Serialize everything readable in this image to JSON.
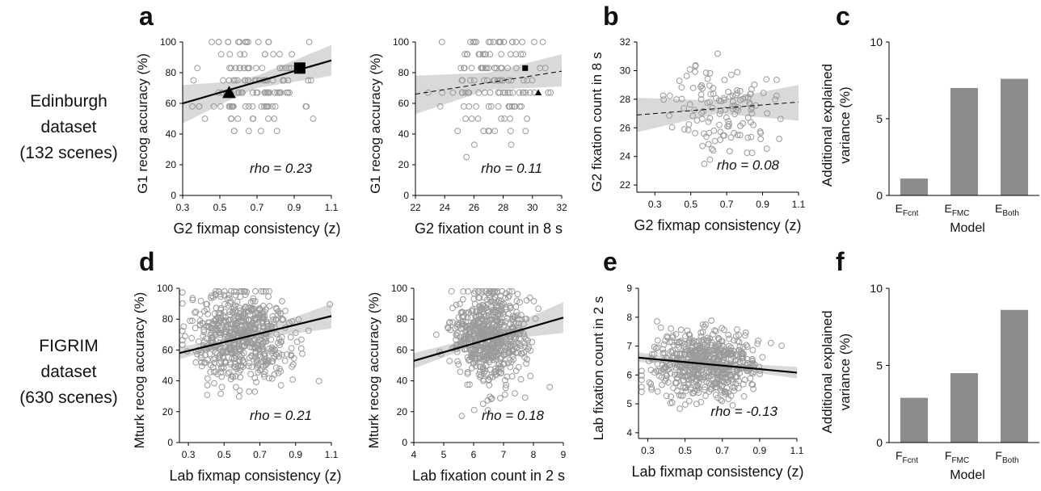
{
  "rows": [
    {
      "lines": [
        "Edinburgh",
        "dataset",
        "(132 scenes)"
      ]
    },
    {
      "lines": [
        "FIGRIM",
        "dataset",
        "(630 scenes)"
      ]
    }
  ],
  "panel_letters": [
    "a",
    "b",
    "c",
    "d",
    "e",
    "f"
  ],
  "chart_data": [
    {
      "type": "scatter",
      "panel": "a",
      "xlabel": "G2 fixmap consistency (z)",
      "ylabel": "G1 recog accuracy (%)",
      "xlim": [
        0.3,
        1.1
      ],
      "ylim": [
        0,
        100
      ],
      "xticks": [
        "0.3",
        "0.5",
        "0.7",
        "0.9",
        "1.1"
      ],
      "yticks": [
        "0",
        "20",
        "40",
        "60",
        "80",
        "100"
      ],
      "annotation": "rho = 0.23",
      "fit": {
        "x": [
          0.3,
          1.1
        ],
        "y": [
          60,
          88
        ],
        "style": "solid"
      },
      "band": {
        "x": [
          0.3,
          0.55,
          0.7,
          1.1
        ],
        "lower": [
          47,
          62,
          70,
          78
        ],
        "upper": [
          72,
          74,
          78,
          98
        ]
      },
      "points": {
        "n": 132,
        "seed": 11,
        "xmean": 0.68,
        "xsd": 0.13,
        "ylevels": [
          25,
          33,
          42,
          50,
          58,
          67,
          75,
          83,
          92,
          100
        ],
        "ysd": 18,
        "ymean": 73
      },
      "markers": [
        {
          "shape": "triangle",
          "x": 0.55,
          "y": 67,
          "size": "large"
        },
        {
          "shape": "square",
          "x": 0.93,
          "y": 83,
          "size": "large"
        }
      ]
    },
    {
      "type": "scatter",
      "panel": "a2",
      "xlabel": "G2 fixation count in 8 s",
      "ylabel": "G1 recog accuracy (%)",
      "xlim": [
        22,
        32
      ],
      "ylim": [
        0,
        100
      ],
      "xticks": [
        "22",
        "24",
        "26",
        "28",
        "30",
        "32"
      ],
      "yticks": [
        "0",
        "20",
        "40",
        "60",
        "80",
        "100"
      ],
      "annotation": "rho = 0.11",
      "fit": {
        "x": [
          22,
          32
        ],
        "y": [
          66,
          81
        ],
        "style": "dashed"
      },
      "band": {
        "x": [
          22,
          27,
          32
        ],
        "lower": [
          53,
          69,
          71
        ],
        "upper": [
          78,
          80,
          92
        ]
      },
      "points": {
        "n": 132,
        "seed": 23,
        "xmean": 27.2,
        "xsd": 1.6,
        "ylevels": [
          25,
          33,
          42,
          50,
          58,
          67,
          75,
          83,
          92,
          100
        ],
        "ysd": 18,
        "ymean": 73
      },
      "markers": [
        {
          "shape": "square",
          "x": 29.5,
          "y": 83,
          "size": "small"
        },
        {
          "shape": "triangle",
          "x": 30.4,
          "y": 67,
          "size": "small"
        }
      ]
    },
    {
      "type": "scatter",
      "panel": "b",
      "xlabel": "G2 fixmap consistency (z)",
      "ylabel": "G2 fixation count in 8 s",
      "xlim": [
        0.2,
        1.1
      ],
      "ylim": [
        21.5,
        32
      ],
      "xticks": [
        "0.3",
        "0.5",
        "0.7",
        "0.9",
        "1.1"
      ],
      "xtickvals": [
        0.3,
        0.5,
        0.7,
        0.9,
        1.1
      ],
      "yticks": [
        "22",
        "24",
        "26",
        "28",
        "30",
        "32"
      ],
      "annotation": "rho = 0.08",
      "fit": {
        "x": [
          0.2,
          1.1
        ],
        "y": [
          26.9,
          27.8
        ],
        "style": "dashed"
      },
      "band": {
        "x": [
          0.2,
          0.65,
          1.1
        ],
        "lower": [
          25.7,
          27.0,
          26.5
        ],
        "upper": [
          28.1,
          27.9,
          29.0
        ]
      },
      "points": {
        "n": 132,
        "seed": 37,
        "xmean": 0.68,
        "xsd": 0.14,
        "ymean": 27.3,
        "ysd": 1.6
      }
    },
    {
      "type": "bar",
      "panel": "c",
      "ylabel": "Additional explained variance (%)",
      "xlabel": "Model",
      "ylim": [
        0,
        10
      ],
      "yticks": [
        "0",
        "5",
        "10"
      ],
      "categories": [
        {
          "main": "E",
          "sub": "Fcnt"
        },
        {
          "main": "E",
          "sub": "FMC"
        },
        {
          "main": "E",
          "sub": "Both"
        }
      ],
      "values": [
        1.1,
        7.0,
        7.6
      ],
      "color": "#8c8c8c"
    },
    {
      "type": "scatter",
      "panel": "d",
      "xlabel": "Lab fixmap consistency (z)",
      "ylabel": "Mturk recog accuracy (%)",
      "xlim": [
        0.25,
        1.1
      ],
      "ylim": [
        0,
        100
      ],
      "xticks": [
        "0.3",
        "0.5",
        "0.7",
        "0.9",
        "1.1"
      ],
      "xtickvals": [
        0.3,
        0.5,
        0.7,
        0.9,
        1.1
      ],
      "yticks": [
        "0",
        "20",
        "40",
        "60",
        "80",
        "100"
      ],
      "annotation": "rho = 0.21",
      "fit": {
        "x": [
          0.25,
          1.1
        ],
        "y": [
          58,
          82
        ],
        "style": "solid"
      },
      "band": {
        "x": [
          0.25,
          0.6,
          1.1
        ],
        "lower": [
          54,
          66,
          74
        ],
        "upper": [
          62,
          69,
          90
        ]
      },
      "points": {
        "n": 630,
        "seed": 51,
        "xmean": 0.6,
        "xsd": 0.14,
        "ymean": 68,
        "ysd": 15
      }
    },
    {
      "type": "scatter",
      "panel": "d2",
      "xlabel": "Lab fixation count in 2 s",
      "ylabel": "Mturk recog accuracy (%)",
      "xlim": [
        4,
        9
      ],
      "ylim": [
        0,
        100
      ],
      "xticks": [
        "4",
        "5",
        "6",
        "7",
        "8",
        "9"
      ],
      "yticks": [
        "0",
        "20",
        "40",
        "60",
        "80",
        "100"
      ],
      "annotation": "rho = 0.18",
      "fit": {
        "x": [
          4,
          9
        ],
        "y": [
          53,
          81
        ],
        "style": "solid"
      },
      "band": {
        "x": [
          4,
          6.5,
          9
        ],
        "lower": [
          48,
          66,
          71
        ],
        "upper": [
          58,
          70,
          91
        ]
      },
      "points": {
        "n": 630,
        "seed": 67,
        "xmean": 6.5,
        "xsd": 0.6,
        "ymean": 68,
        "ysd": 15
      }
    },
    {
      "type": "scatter",
      "panel": "e",
      "xlabel": "Lab fixmap consistency (z)",
      "ylabel": "Lab fixation count in 2 s",
      "xlim": [
        0.25,
        1.1
      ],
      "ylim": [
        3.8,
        9
      ],
      "xticks": [
        "0.3",
        "0.5",
        "0.7",
        "0.9",
        "1.1"
      ],
      "xtickvals": [
        0.3,
        0.5,
        0.7,
        0.9,
        1.1
      ],
      "yticks": [
        "4",
        "5",
        "6",
        "7",
        "8",
        "9"
      ],
      "annotation": "rho = -0.13",
      "fit": {
        "x": [
          0.25,
          1.1
        ],
        "y": [
          6.6,
          6.08
        ],
        "style": "solid"
      },
      "band": {
        "x": [
          0.25,
          0.6,
          1.1
        ],
        "lower": [
          6.45,
          6.33,
          5.88
        ],
        "upper": [
          6.78,
          6.45,
          6.28
        ]
      },
      "points": {
        "n": 630,
        "seed": 79,
        "xmean": 0.6,
        "xsd": 0.14,
        "ymean": 6.4,
        "ysd": 0.55
      }
    },
    {
      "type": "bar",
      "panel": "f",
      "ylabel": "Additional explained variance (%)",
      "xlabel": "Model",
      "ylim": [
        0,
        10
      ],
      "yticks": [
        "0",
        "5",
        "10"
      ],
      "categories": [
        {
          "main": "F",
          "sub": "Fcnt"
        },
        {
          "main": "F",
          "sub": "FMC"
        },
        {
          "main": "F",
          "sub": "Both"
        }
      ],
      "values": [
        2.9,
        4.5,
        8.6
      ],
      "color": "#8c8c8c"
    }
  ]
}
